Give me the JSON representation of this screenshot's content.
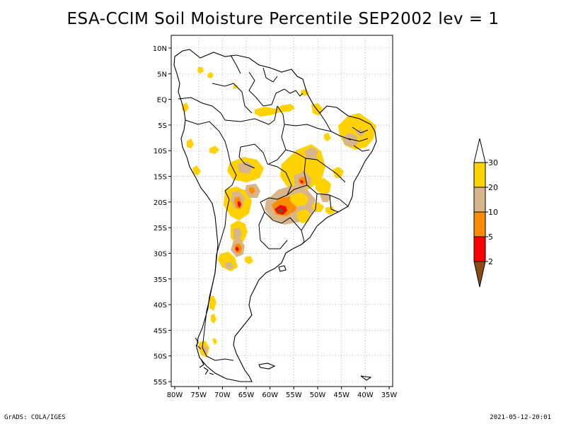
{
  "title": "ESA-CCIM Soil Moisture Percentile SEP2002 lev = 1",
  "footer": {
    "credit": "GrADS: COLA/IGES",
    "timestamp": "2021-05-12-20:01"
  },
  "map": {
    "region": "South America",
    "projection": "latlon",
    "lon_range": [
      -80,
      -30
    ],
    "lat_range": [
      -56,
      12
    ],
    "x_ticks": [
      "80W",
      "75W",
      "70W",
      "65W",
      "60W",
      "55W",
      "50W",
      "45W",
      "40W",
      "35W"
    ],
    "y_ticks": [
      "10N",
      "5N",
      "EQ",
      "5S",
      "10S",
      "15S",
      "20S",
      "25S",
      "30S",
      "35S",
      "40S",
      "45S",
      "50S",
      "55S"
    ],
    "grid": "dotted"
  },
  "colorbar": {
    "labels": [
      "30",
      "20",
      "10",
      "5",
      "2"
    ],
    "bins": [
      {
        "label": "above 30",
        "color": "#ffffff"
      },
      {
        "label": "20-30",
        "color": "#ffd200"
      },
      {
        "label": "10-20",
        "color": "#d8b68a"
      },
      {
        "label": "5-10",
        "color": "#ff8c00"
      },
      {
        "label": "2-5",
        "color": "#ff0000"
      },
      {
        "label": "below 2",
        "color": "#8c4a14"
      }
    ]
  }
}
